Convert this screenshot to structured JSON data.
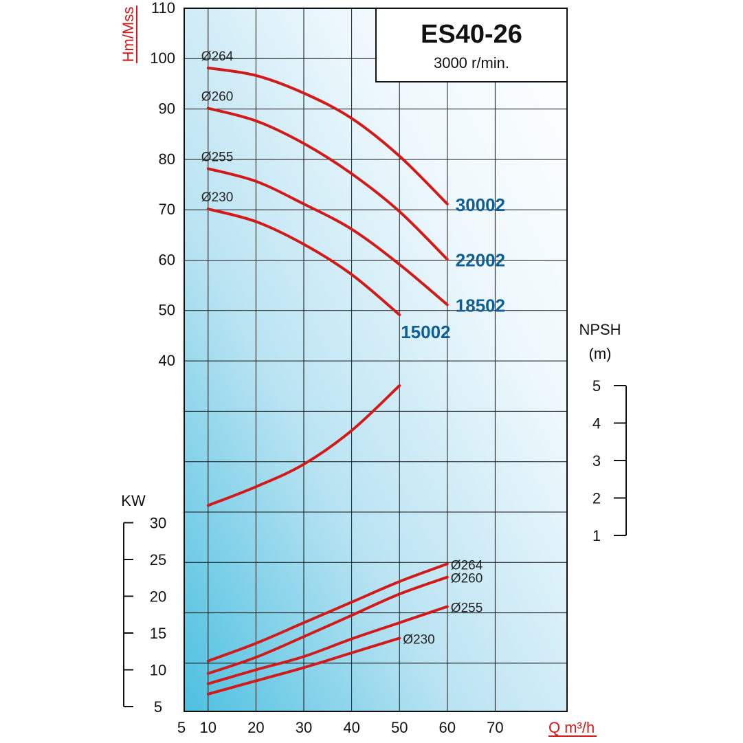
{
  "chart_data": {
    "type": "line",
    "title": "ES40-26",
    "subtitle": "3000 r/min.",
    "xlabel": "Q m³/h",
    "ylabel": "Hm/Mss",
    "x_ticks": [
      "5",
      "10",
      "20",
      "30",
      "40",
      "50",
      "60",
      "70"
    ],
    "x_range": [
      5,
      85
    ],
    "y_head_ticks": [
      "110",
      "100",
      "90",
      "80",
      "70",
      "60",
      "50",
      "40"
    ],
    "y_head_range": [
      40,
      110
    ],
    "kw_axis": {
      "label": "KW",
      "ticks": [
        "30",
        "25",
        "20",
        "15",
        "10",
        "5"
      ],
      "range": [
        5,
        30
      ]
    },
    "npsh_axis": {
      "label_line1": "NPSH",
      "label_line2": "(m)",
      "ticks": [
        "5",
        "4",
        "3",
        "2",
        "1"
      ],
      "range": [
        1,
        5
      ]
    },
    "grid": true,
    "colors": {
      "curve": "#d21a1a",
      "model_label": "#0f5f94",
      "axis_title": "#d21a1a"
    },
    "head_curves": [
      {
        "name": "Ø264",
        "model": "30002",
        "x": [
          10,
          20,
          30,
          40,
          50,
          60
        ],
        "y": [
          98,
          96.5,
          93,
          88,
          80.5,
          71
        ]
      },
      {
        "name": "Ø260",
        "model": "22002",
        "x": [
          10,
          20,
          30,
          40,
          50,
          60
        ],
        "y": [
          90,
          87.5,
          83,
          77,
          69.5,
          60
        ]
      },
      {
        "name": "Ø255",
        "model": "18502",
        "x": [
          10,
          20,
          30,
          40,
          50,
          60
        ],
        "y": [
          78,
          75.5,
          71,
          66,
          59,
          51
        ]
      },
      {
        "name": "Ø230",
        "model": "15002",
        "x": [
          10,
          20,
          30,
          40,
          50
        ],
        "y": [
          70,
          67.5,
          63,
          57,
          49
        ]
      }
    ],
    "npsh_curve": {
      "x": [
        10,
        20,
        30,
        40,
        50
      ],
      "y": [
        1.8,
        2.3,
        2.9,
        3.8,
        5.0
      ]
    },
    "power_curves": [
      {
        "name": "Ø264",
        "x": [
          10,
          20,
          30,
          40,
          50,
          60
        ],
        "y": [
          11.2,
          13.6,
          16.4,
          19.2,
          22.0,
          24.4
        ]
      },
      {
        "name": "Ø260",
        "x": [
          10,
          20,
          30,
          40,
          50,
          60
        ],
        "y": [
          9.5,
          11.7,
          14.5,
          17.4,
          20.3,
          22.6
        ]
      },
      {
        "name": "Ø255",
        "x": [
          10,
          20,
          30,
          40,
          50,
          60
        ],
        "y": [
          8.1,
          10.0,
          11.8,
          14.2,
          16.4,
          18.6
        ]
      },
      {
        "name": "Ø230",
        "x": [
          10,
          20,
          30,
          40,
          50
        ],
        "y": [
          6.7,
          8.5,
          10.3,
          12.3,
          14.3
        ]
      }
    ]
  }
}
